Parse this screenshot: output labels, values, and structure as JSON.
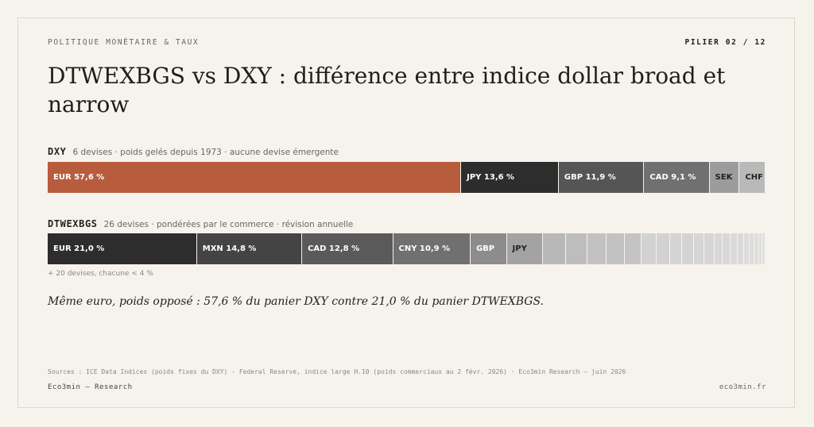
{
  "header": {
    "kicker": "POLITIQUE MONÉTAIRE & TAUX",
    "page": "PILIER 02 / 12"
  },
  "title": "DTWEXBGS vs DXY : différence entre indice dollar broad et narrow",
  "bars": [
    {
      "name": "DXY",
      "description": "6 devises · poids gelés depuis 1973 · aucune devise émergente",
      "segments": [
        {
          "label": "EUR 57,6 %",
          "value": 57.6,
          "color": "#b85c3e"
        },
        {
          "label": "JPY 13,6 %",
          "value": 13.6,
          "color": "#2d2d2d"
        },
        {
          "label": "GBP 11,9 %",
          "value": 11.9,
          "color": "#555555"
        },
        {
          "label": "CAD 9,1 %",
          "value": 9.1,
          "color": "#707070"
        },
        {
          "label": "SEK",
          "value": 4.2,
          "color": "#9c9c9c"
        },
        {
          "label": "CHF",
          "value": 3.6,
          "color": "#b9b9b9"
        }
      ]
    },
    {
      "name": "DTWEXBGS",
      "description": "26 devises · pondérées par le commerce · révision annuelle",
      "segments": [
        {
          "label": "EUR 21,0 %",
          "value": 21.0,
          "color": "#2d2d2d"
        },
        {
          "label": "MXN 14,8 %",
          "value": 14.8,
          "color": "#444444"
        },
        {
          "label": "CAD 12,8 %",
          "value": 12.8,
          "color": "#5a5a5a"
        },
        {
          "label": "CNY 10,9 %",
          "value": 10.9,
          "color": "#707070"
        },
        {
          "label": "GBP",
          "value": 5.1,
          "color": "#8c8c8c"
        },
        {
          "label": "JPY",
          "value": 5.1,
          "color": "#a3a3a3"
        },
        {
          "value": 3.2,
          "color": "#b8b8b8"
        },
        {
          "value": 3.0,
          "color": "#bdbdbd"
        },
        {
          "value": 2.7,
          "color": "#c2c2c2"
        },
        {
          "value": 2.6,
          "color": "#c2c2c2"
        },
        {
          "value": 2.4,
          "color": "#c4c4c4"
        },
        {
          "value": 2.1,
          "color": "#d2d2d2"
        },
        {
          "value": 1.9,
          "color": "#d2d2d2"
        },
        {
          "value": 1.7,
          "color": "#d4d4d4"
        },
        {
          "value": 1.6,
          "color": "#d4d4d4"
        },
        {
          "value": 1.5,
          "color": "#d6d6d6"
        },
        {
          "value": 1.4,
          "color": "#d6d6d6"
        },
        {
          "value": 1.2,
          "color": "#d8d8d8"
        },
        {
          "value": 1.1,
          "color": "#d8d8d8"
        },
        {
          "value": 1.0,
          "color": "#dadada"
        },
        {
          "value": 0.9,
          "color": "#dadada"
        },
        {
          "value": 0.8,
          "color": "#dcdcdc"
        },
        {
          "value": 0.7,
          "color": "#dcdcdc"
        },
        {
          "value": 0.6,
          "color": "#dedede"
        },
        {
          "value": 0.5,
          "color": "#dedede"
        },
        {
          "value": 0.4,
          "color": "#e0e0e0"
        }
      ]
    }
  ],
  "note": "+ 20 devises, chacune < 4 %",
  "caption": "Même euro, poids opposé : 57,6 % du panier DXY contre 21,0 % du panier DTWEXBGS.",
  "footer": {
    "sources": "Sources : ICE Data Indices (poids fixes du DXY) · Federal Reserve, indice large H.10 (poids commerciaux au 2 févr. 2026) · Eco3min Research — juin 2026",
    "brand": "Eco3min — Research",
    "site": "eco3min.fr"
  }
}
